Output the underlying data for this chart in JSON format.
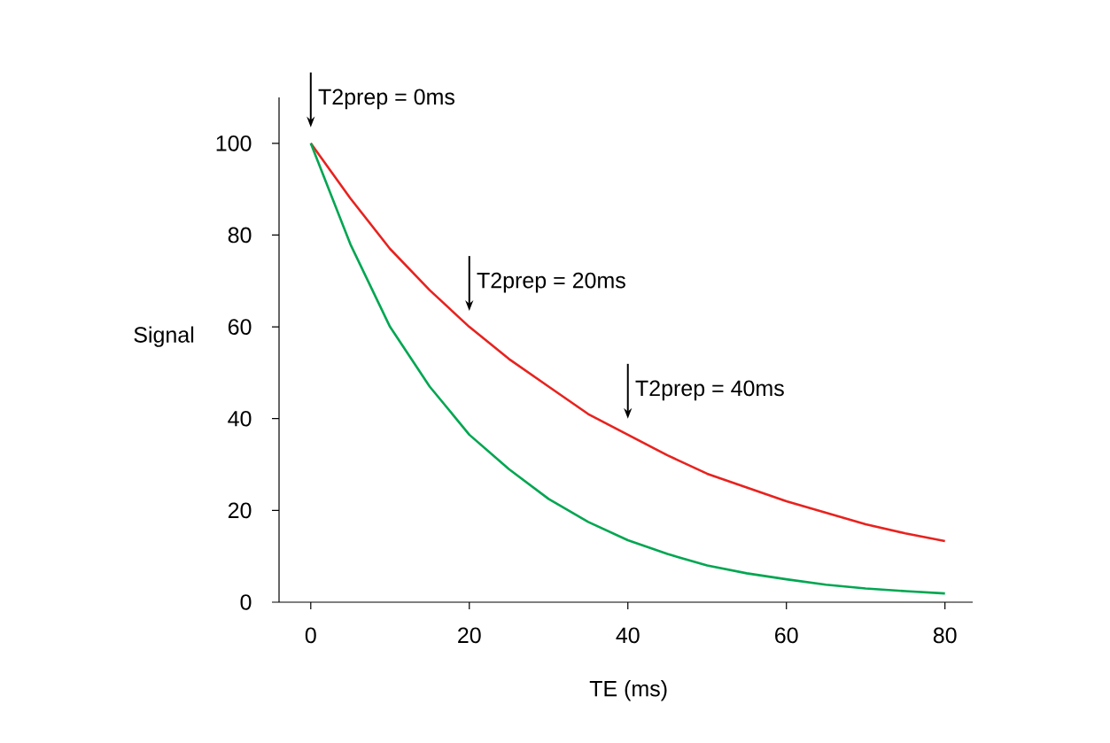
{
  "chart_data": {
    "type": "line",
    "xlabel": "TE (ms)",
    "ylabel": "Signal",
    "x": [
      0,
      5,
      10,
      15,
      20,
      25,
      30,
      35,
      40,
      45,
      50,
      55,
      60,
      65,
      70,
      75,
      80
    ],
    "series": [
      {
        "color": "#e8221e",
        "values": [
          100,
          88,
          77,
          68,
          60,
          53,
          47,
          41,
          36.5,
          32,
          28,
          25,
          22,
          19.5,
          17,
          15,
          13.3
        ]
      },
      {
        "color": "#00a651",
        "values": [
          100,
          78,
          60,
          47,
          36.5,
          29,
          22.5,
          17.5,
          13.5,
          10.5,
          8,
          6.3,
          5,
          3.8,
          3,
          2.4,
          1.9
        ]
      }
    ],
    "xlim": [
      -4,
      83.5
    ],
    "ylim": [
      0,
      110
    ],
    "xticks": [
      0,
      20,
      40,
      60,
      80
    ],
    "yticks": [
      0,
      20,
      40,
      60,
      80,
      100
    ],
    "annotations": [
      {
        "text": "T2prep = 0ms",
        "x": 0,
        "y": 100
      },
      {
        "text": "T2prep = 20ms",
        "x": 20,
        "y": 60
      },
      {
        "text": "T2prep = 40ms",
        "x": 40,
        "y": 36.5
      }
    ],
    "grid": false,
    "marker": "none",
    "line_style": "solid"
  }
}
